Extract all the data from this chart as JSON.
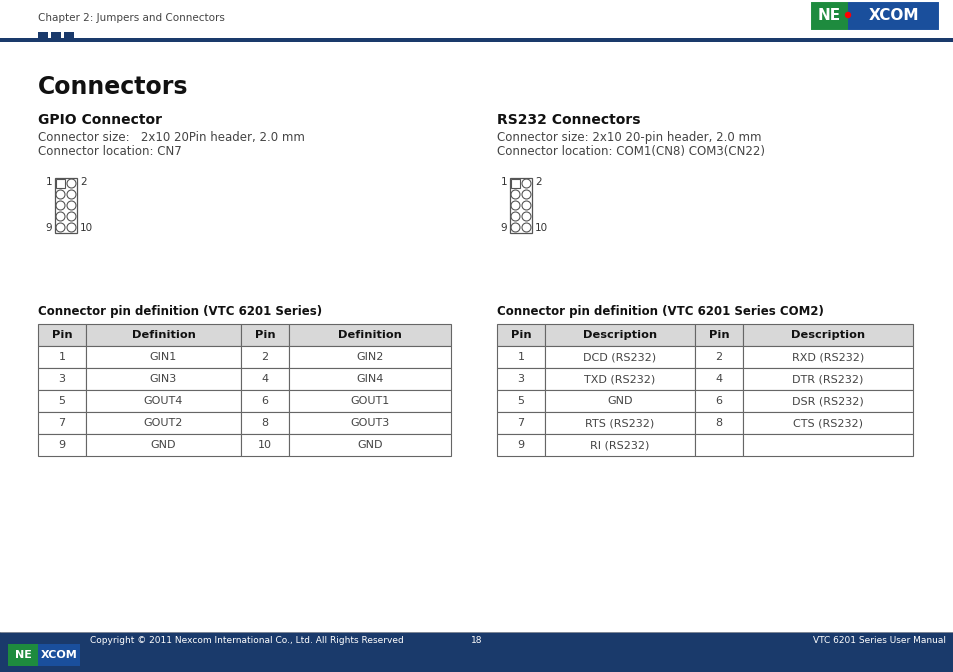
{
  "page_header_text": "Chapter 2: Jumpers and Connectors",
  "header_line_color": "#1a3a6b",
  "header_squares_color": "#1a3a6b",
  "main_title": "Connectors",
  "left_section_title": "GPIO Connector",
  "left_desc1": "Connector size:   2x10 20Pin header, 2.0 mm",
  "left_desc2": "Connector location: CN7",
  "right_section_title": "RS232 Connectors",
  "right_desc1": "Connector size: 2x10 20-pin header, 2.0 mm",
  "right_desc2": "Connector location: COM1(CN8) COM3(CN22)",
  "left_table_title": "Connector pin definition (VTC 6201 Series)",
  "left_table_headers": [
    "Pin",
    "Definition",
    "Pin",
    "Definition"
  ],
  "left_table_data": [
    [
      "1",
      "GIN1",
      "2",
      "GIN2"
    ],
    [
      "3",
      "GIN3",
      "4",
      "GIN4"
    ],
    [
      "5",
      "GOUT4",
      "6",
      "GOUT1"
    ],
    [
      "7",
      "GOUT2",
      "8",
      "GOUT3"
    ],
    [
      "9",
      "GND",
      "10",
      "GND"
    ]
  ],
  "right_table_title": "Connector pin definition (VTC 6201 Series COM2)",
  "right_table_headers": [
    "Pin",
    "Description",
    "Pin",
    "Description"
  ],
  "right_table_data": [
    [
      "1",
      "DCD (RS232)",
      "2",
      "RXD (RS232)"
    ],
    [
      "3",
      "TXD (RS232)",
      "4",
      "DTR (RS232)"
    ],
    [
      "5",
      "GND",
      "6",
      "DSR (RS232)"
    ],
    [
      "7",
      "RTS (RS232)",
      "8",
      "CTS (RS232)"
    ],
    [
      "9",
      "RI (RS232)",
      "",
      ""
    ]
  ],
  "footer_bar_color": "#1a3a6b",
  "footer_text_left": "Copyright © 2011 Nexcom International Co., Ltd. All Rights Reserved",
  "footer_text_center": "18",
  "footer_text_right": "VTC 6201 Series User Manual",
  "table_border_color": "#666666",
  "nexcom_green": "#1e8b3e",
  "nexcom_blue": "#1a4f9c"
}
